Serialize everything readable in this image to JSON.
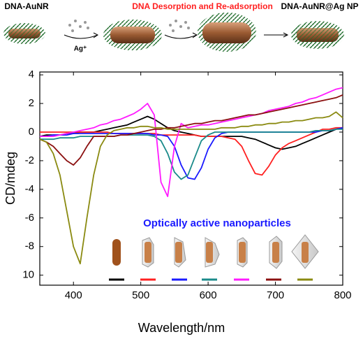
{
  "schematic": {
    "labels": [
      "DNA-AuNR",
      "DNA Desorption and Re-adsorption",
      "DNA-AuNR@Ag NP"
    ],
    "ion": "Ag⁺"
  },
  "chart_data": {
    "type": "line",
    "x_label": "Wavelength/nm",
    "y_label": "CD/mdeg",
    "annotation": "Optically active nanoparticles",
    "xlim": [
      350,
      800
    ],
    "xticks": [
      400,
      500,
      600,
      700,
      800
    ],
    "ylim": [
      -10.7,
      4.2
    ],
    "yticks": [
      4,
      2,
      0,
      -2,
      -4,
      -6,
      -8,
      {
        "value": -10,
        "label": "10"
      }
    ],
    "x": [
      350,
      360,
      370,
      380,
      390,
      400,
      410,
      420,
      430,
      440,
      450,
      460,
      470,
      480,
      490,
      500,
      510,
      520,
      530,
      540,
      550,
      560,
      570,
      580,
      590,
      600,
      610,
      620,
      630,
      640,
      650,
      660,
      670,
      680,
      690,
      700,
      710,
      720,
      730,
      740,
      750,
      760,
      770,
      780,
      790,
      800
    ],
    "series": [
      {
        "color": "#000000",
        "values": [
          -0.3,
          -0.2,
          -0.2,
          -0.2,
          -0.1,
          -0.1,
          0,
          0,
          0,
          0.1,
          0.2,
          0.3,
          0.4,
          0.5,
          0.7,
          0.9,
          1.1,
          0.9,
          0.6,
          0.3,
          0.1,
          0,
          -0.1,
          -0.2,
          -0.3,
          -0.3,
          -0.3,
          -0.3,
          -0.3,
          -0.3,
          -0.3,
          -0.4,
          -0.5,
          -0.7,
          -0.9,
          -1.1,
          -1.2,
          -1.1,
          -1.0,
          -0.8,
          -0.6,
          -0.4,
          -0.2,
          0,
          0.2,
          0.3
        ]
      },
      {
        "color": "#ff2020",
        "values": [
          0,
          0,
          0,
          0,
          0,
          0,
          0,
          0,
          0,
          0,
          0,
          -0.1,
          -0.1,
          -0.1,
          -0.1,
          -0.1,
          -0.1,
          -0.1,
          -0.2,
          -0.2,
          -0.2,
          -0.2,
          -0.2,
          -0.2,
          -0.3,
          -0.3,
          -0.3,
          -0.3,
          -0.4,
          -0.5,
          -1.0,
          -2.0,
          -2.9,
          -3.0,
          -2.4,
          -1.6,
          -1.1,
          -0.8,
          -0.6,
          -0.4,
          -0.2,
          0,
          0.2,
          0.2,
          0.3,
          0.3
        ]
      },
      {
        "color": "#1a1aff",
        "values": [
          -0.3,
          -0.3,
          -0.2,
          -0.2,
          -0.2,
          -0.1,
          -0.1,
          -0.1,
          -0.1,
          -0.1,
          -0.1,
          -0.1,
          -0.1,
          -0.1,
          -0.1,
          -0.1,
          -0.1,
          -0.2,
          -0.2,
          -0.3,
          -1.0,
          -2.3,
          -3.2,
          -3.3,
          -2.5,
          -1.2,
          -0.4,
          -0.1,
          0,
          0,
          0,
          0,
          0,
          0,
          0,
          0,
          0,
          0,
          0,
          0,
          0,
          0,
          0.1,
          0.1,
          0.2,
          0.3
        ]
      },
      {
        "color": "#1a8a8a",
        "values": [
          -0.5,
          -0.5,
          -0.5,
          -0.4,
          -0.4,
          -0.4,
          -0.3,
          -0.3,
          -0.3,
          -0.3,
          -0.3,
          -0.3,
          -0.2,
          -0.2,
          -0.2,
          -0.2,
          -0.2,
          -0.3,
          -0.6,
          -1.5,
          -2.8,
          -3.3,
          -3.0,
          -1.8,
          -0.6,
          -0.2,
          0,
          0,
          0,
          0,
          0,
          0,
          0,
          0,
          0,
          0,
          0,
          0,
          0,
          0,
          0,
          0.1,
          0.1,
          0.1,
          0.2,
          0.2
        ]
      },
      {
        "color": "#ff1aff",
        "values": [
          -0.3,
          -0.3,
          -0.3,
          -0.2,
          -0.1,
          0,
          0.1,
          0.2,
          0.3,
          0.5,
          0.6,
          0.8,
          0.9,
          1.1,
          1.3,
          1.6,
          2.0,
          1.2,
          -3.5,
          -4.5,
          -1.0,
          0.6,
          0.3,
          0.4,
          0.5,
          0.5,
          0.6,
          0.7,
          0.8,
          0.9,
          1.0,
          1.1,
          1.2,
          1.3,
          1.5,
          1.6,
          1.7,
          1.8,
          2.0,
          2.1,
          2.3,
          2.4,
          2.6,
          2.8,
          3.0,
          3.1
        ]
      },
      {
        "color": "#8b1010",
        "values": [
          -0.5,
          -0.7,
          -1.0,
          -1.5,
          -2.0,
          -2.3,
          -1.8,
          -1.0,
          -0.3,
          -0.3,
          -0.3,
          -0.3,
          -0.2,
          -0.2,
          -0.1,
          0,
          0.1,
          0.2,
          0.2,
          0.3,
          0.3,
          0.4,
          0.5,
          0.6,
          0.6,
          0.7,
          0.8,
          0.8,
          0.9,
          1.0,
          1.1,
          1.2,
          1.2,
          1.3,
          1.4,
          1.5,
          1.6,
          1.7,
          1.8,
          1.9,
          2.0,
          2.1,
          2.2,
          2.3,
          2.4,
          2.6
        ]
      },
      {
        "color": "#8a8a10",
        "values": [
          -0.5,
          -0.7,
          -1.5,
          -3.0,
          -5.5,
          -8.0,
          -9.2,
          -6.0,
          -3.0,
          -1.0,
          -0.2,
          0.1,
          0.2,
          0.3,
          0.3,
          0.4,
          0.4,
          0.3,
          0.3,
          0.2,
          0.2,
          0.2,
          0.2,
          0.2,
          0.2,
          0.2,
          0.2,
          0.3,
          0.3,
          0.3,
          0.4,
          0.4,
          0.5,
          0.5,
          0.6,
          0.6,
          0.7,
          0.7,
          0.8,
          0.8,
          0.9,
          1.0,
          1.0,
          1.1,
          1.4,
          1.0
        ]
      }
    ]
  }
}
